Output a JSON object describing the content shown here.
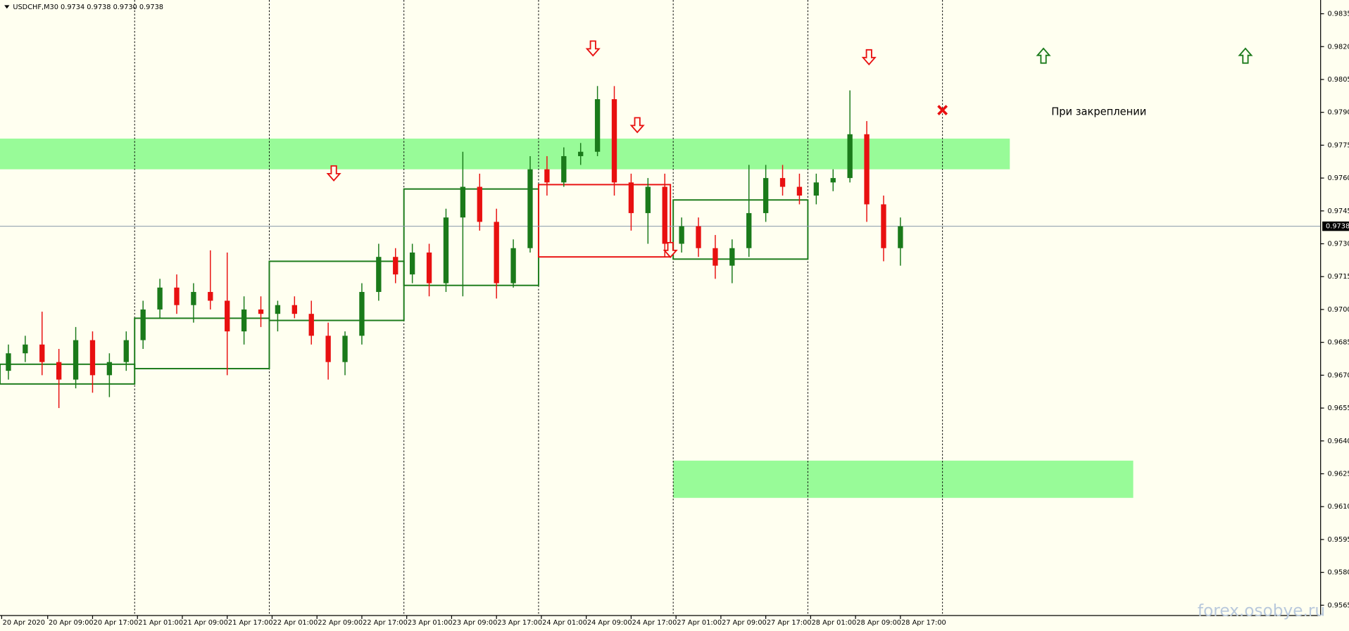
{
  "chart_data": {
    "type": "candlestick",
    "title": "USDCHF,M30  0.9734 0.9738 0.9730 0.9738",
    "x": [
      1.5,
      4.5,
      7.5,
      10.5,
      13.5,
      16.5,
      19.5,
      22.5,
      25.5,
      28.5,
      31.5,
      34.5,
      37.5,
      40.5,
      43.5,
      46.5,
      49.5,
      52.5,
      55.5,
      58.5,
      61.5,
      64.5,
      67.5,
      70.5,
      73.5,
      76.5,
      79.5,
      82.5,
      85.5,
      88.5,
      91.5,
      94.5,
      97.5,
      100.5,
      103.5,
      106.5,
      109.5,
      112.5,
      115.5,
      118.5,
      121.5,
      124.5,
      127.5,
      130.5,
      133.5,
      136.5,
      139.5,
      142.5,
      145.5,
      148.5,
      151.5,
      154.5,
      157.5,
      160.5
    ],
    "ohlc": [
      [
        0.9672,
        0.9684,
        0.9668,
        0.968
      ],
      [
        0.968,
        0.9688,
        0.9676,
        0.9684
      ],
      [
        0.9684,
        0.9699,
        0.967,
        0.9676
      ],
      [
        0.9676,
        0.9682,
        0.9655,
        0.9668
      ],
      [
        0.9668,
        0.9692,
        0.9664,
        0.9686
      ],
      [
        0.9686,
        0.969,
        0.9662,
        0.967
      ],
      [
        0.967,
        0.968,
        0.966,
        0.9676
      ],
      [
        0.9676,
        0.969,
        0.9672,
        0.9686
      ],
      [
        0.9686,
        0.9704,
        0.9682,
        0.97
      ],
      [
        0.97,
        0.9714,
        0.9696,
        0.971
      ],
      [
        0.971,
        0.9716,
        0.9698,
        0.9702
      ],
      [
        0.9702,
        0.9712,
        0.9694,
        0.9708
      ],
      [
        0.9708,
        0.9727,
        0.97,
        0.9704
      ],
      [
        0.9704,
        0.9726,
        0.967,
        0.969
      ],
      [
        0.969,
        0.9706,
        0.9684,
        0.97
      ],
      [
        0.97,
        0.9706,
        0.9692,
        0.9698
      ],
      [
        0.9698,
        0.9704,
        0.969,
        0.9702
      ],
      [
        0.9702,
        0.9706,
        0.9696,
        0.9698
      ],
      [
        0.9698,
        0.9704,
        0.9684,
        0.9688
      ],
      [
        0.9688,
        0.9694,
        0.9668,
        0.9676
      ],
      [
        0.9676,
        0.969,
        0.967,
        0.9688
      ],
      [
        0.9688,
        0.9712,
        0.9684,
        0.9708
      ],
      [
        0.9708,
        0.973,
        0.9704,
        0.9724
      ],
      [
        0.9724,
        0.9728,
        0.9712,
        0.9716
      ],
      [
        0.9716,
        0.973,
        0.9712,
        0.9726
      ],
      [
        0.9726,
        0.973,
        0.9706,
        0.9712
      ],
      [
        0.9712,
        0.9746,
        0.9708,
        0.9742
      ],
      [
        0.9742,
        0.9772,
        0.9706,
        0.9756
      ],
      [
        0.9756,
        0.9762,
        0.9736,
        0.974
      ],
      [
        0.974,
        0.9746,
        0.9705,
        0.9712
      ],
      [
        0.9712,
        0.9732,
        0.971,
        0.9728
      ],
      [
        0.9728,
        0.977,
        0.9726,
        0.9764
      ],
      [
        0.9764,
        0.977,
        0.9752,
        0.9758
      ],
      [
        0.9758,
        0.9774,
        0.9756,
        0.977
      ],
      [
        0.977,
        0.9776,
        0.9766,
        0.9772
      ],
      [
        0.9772,
        0.9802,
        0.977,
        0.9796
      ],
      [
        0.9796,
        0.9802,
        0.9752,
        0.9758
      ],
      [
        0.9758,
        0.9762,
        0.9736,
        0.9744
      ],
      [
        0.9744,
        0.976,
        0.973,
        0.9756
      ],
      [
        0.9756,
        0.9762,
        0.9724,
        0.973
      ],
      [
        0.973,
        0.9742,
        0.9726,
        0.9738
      ],
      [
        0.9738,
        0.9742,
        0.9724,
        0.9728
      ],
      [
        0.9728,
        0.9734,
        0.9714,
        0.972
      ],
      [
        0.972,
        0.9732,
        0.9712,
        0.9728
      ],
      [
        0.9728,
        0.9766,
        0.9724,
        0.9744
      ],
      [
        0.9744,
        0.9766,
        0.974,
        0.976
      ],
      [
        0.976,
        0.9766,
        0.9752,
        0.9756
      ],
      [
        0.9756,
        0.9762,
        0.9748,
        0.9752
      ],
      [
        0.9752,
        0.9762,
        0.9748,
        0.9758
      ],
      [
        0.9758,
        0.9764,
        0.9754,
        0.976
      ],
      [
        0.976,
        0.98,
        0.9758,
        0.978
      ],
      [
        0.978,
        0.9786,
        0.974,
        0.9748
      ],
      [
        0.9748,
        0.9752,
        0.9722,
        0.9728
      ],
      [
        0.9728,
        0.9742,
        0.972,
        0.9738
      ]
    ],
    "up_color": "#1a7a1a",
    "down_color": "#e81010",
    "xlim": [
      0,
      235.4
    ],
    "ylim": [
      0.9565,
      0.9835
    ],
    "yticks": [
      0.9565,
      {
        "value": 0.958,
        "label": "0.9580"
      },
      0.9595,
      {
        "value": 0.961,
        "label": "0.9610"
      },
      0.9625,
      {
        "value": 0.964,
        "label": "0.9640"
      },
      0.9655,
      {
        "value": 0.967,
        "label": "0.9670"
      },
      0.9685,
      {
        "value": 0.97,
        "label": "0.9700"
      },
      0.9715,
      {
        "value": 0.973,
        "label": "0.9730"
      },
      0.9745,
      {
        "value": 0.976,
        "label": "0.9760"
      },
      0.9775,
      {
        "value": 0.979,
        "label": "0.9790"
      },
      0.9805,
      {
        "value": 0.982,
        "label": "0.9820"
      },
      0.9835
    ],
    "xticks": [
      {
        "value": 0.3,
        "label": "20 Apr 2020"
      },
      {
        "value": 8.5,
        "label": "20 Apr 09:00"
      },
      {
        "value": 16.5,
        "label": "20 Apr 17:00"
      },
      {
        "value": 24.5,
        "label": "21 Apr 01:00"
      },
      {
        "value": 32.5,
        "label": "21 Apr 09:00"
      },
      {
        "value": 40.5,
        "label": "21 Apr 17:00"
      },
      {
        "value": 48.5,
        "label": "22 Apr 01:00"
      },
      {
        "value": 56.5,
        "label": "22 Apr 09:00"
      },
      {
        "value": 64.5,
        "label": "22 Apr 17:00"
      },
      {
        "value": 72.5,
        "label": "23 Apr 01:00"
      },
      {
        "value": 80.5,
        "label": "23 Apr 09:00"
      },
      {
        "value": 88.5,
        "label": "23 Apr 17:00"
      },
      {
        "value": 96.5,
        "label": "24 Apr 01:00"
      },
      {
        "value": 104.5,
        "label": "24 Apr 09:00"
      },
      {
        "value": 112.5,
        "label": "24 Apr 17:00"
      },
      {
        "value": 120.5,
        "label": "27 Apr 01:00"
      },
      {
        "value": 128.5,
        "label": "27 Apr 09:00"
      },
      {
        "value": 136.5,
        "label": "27 Apr 17:00"
      },
      {
        "value": 144.5,
        "label": "28 Apr 01:00"
      },
      {
        "value": 152.5,
        "label": "28 Apr 09:00"
      },
      {
        "value": 160.5,
        "label": "28 Apr 17:00"
      }
    ],
    "separators": [
      24,
      48,
      72,
      96,
      120,
      144,
      168
    ],
    "zones": [
      {
        "x0": 0,
        "x1": 180,
        "y0": 0.9764,
        "y1": 0.9778,
        "color": "#98fb98"
      },
      {
        "x0": 120,
        "x1": 202,
        "y0": 0.9614,
        "y1": 0.9631,
        "color": "#98fb98"
      }
    ],
    "boxes": [
      {
        "x0": 0,
        "x1": 24,
        "y0": 0.9666,
        "y1": 0.9675,
        "color": "#1a7a1a"
      },
      {
        "x0": 24,
        "x1": 48,
        "y0": 0.9673,
        "y1": 0.9696,
        "color": "#1a7a1a"
      },
      {
        "x0": 48,
        "x1": 72,
        "y0": 0.9695,
        "y1": 0.9722,
        "color": "#1a7a1a"
      },
      {
        "x0": 72,
        "x1": 96,
        "y0": 0.9711,
        "y1": 0.9755,
        "color": "#1a7a1a"
      },
      {
        "x0": 96,
        "x1": 119.5,
        "y0": 0.9724,
        "y1": 0.9757,
        "color": "#e81010"
      },
      {
        "x0": 120,
        "x1": 144,
        "y0": 0.9723,
        "y1": 0.975,
        "color": "#1a7a1a"
      }
    ],
    "arrows": [
      {
        "x": 59.5,
        "y": 0.9762,
        "dir": "down",
        "color": "#e81010"
      },
      {
        "x": 105.7,
        "y": 0.9819,
        "dir": "down",
        "color": "#e81010"
      },
      {
        "x": 113.6,
        "y": 0.9784,
        "dir": "down",
        "color": "#e81010"
      },
      {
        "x": 119.5,
        "y": 0.9727,
        "dir": "down",
        "color": "#e81010"
      },
      {
        "x": 154.9,
        "y": 0.9815,
        "dir": "down",
        "color": "#e81010"
      },
      {
        "x": 186,
        "y": 0.9816,
        "dir": "up",
        "color": "#1a7a1a"
      },
      {
        "x": 222,
        "y": 0.9816,
        "dir": "up",
        "color": "#1a7a1a"
      }
    ],
    "cross": {
      "x": 168,
      "y": 0.9791,
      "color": "#e81010"
    },
    "annotation": {
      "text": "При закреплении",
      "x": 187.4,
      "y": 0.979
    },
    "current_price": 0.9738,
    "watermark": "forex.osobye.ru"
  }
}
